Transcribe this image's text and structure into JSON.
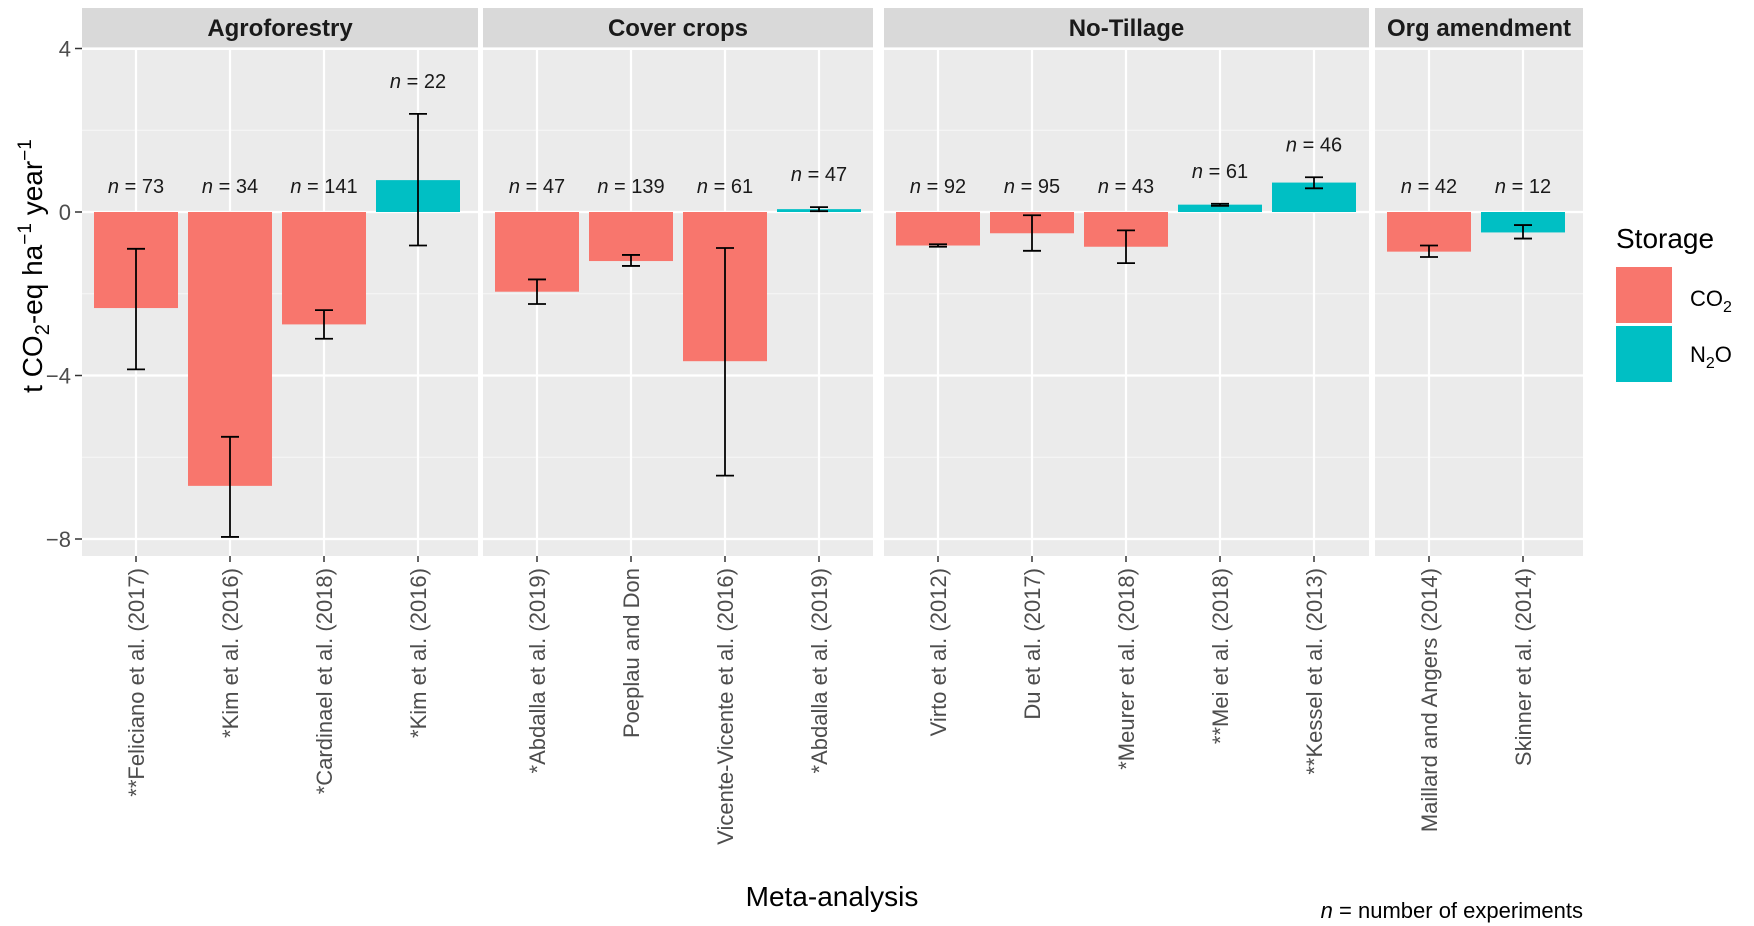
{
  "chart_data": {
    "type": "bar",
    "xlabel": "Meta-analysis",
    "ylabel": "t CO2-eq ha-1 year-1",
    "ylim": [
      -8.6,
      5.2
    ],
    "yticks": [
      4,
      0,
      -4,
      -8
    ],
    "grid": true,
    "legend": {
      "title": "Storage",
      "placement": "right",
      "entries": [
        {
          "key": "CO2",
          "label": "CO",
          "sub": "2",
          "color": "#F8766D"
        },
        {
          "key": "N2O",
          "label": "N",
          "sub": "2",
          "tail": "O",
          "color": "#00BFC4"
        }
      ]
    },
    "note": {
      "n": "n",
      "rest": " = number of experiments"
    },
    "n_prefix": "n",
    "panels": [
      {
        "title": "Agroforestry",
        "bars": [
          {
            "label": "**Feliciano et al. (2017)",
            "storage": "CO2",
            "value": -2.35,
            "err_low": -3.85,
            "err_high": -0.9,
            "n": "73"
          },
          {
            "label": "*Kim et al. (2016)",
            "storage": "CO2",
            "value": -6.7,
            "err_low": -7.95,
            "err_high": -5.5,
            "n": "34"
          },
          {
            "label": "*Cardinael et al. (2018)",
            "storage": "CO2",
            "value": -2.75,
            "err_low": -3.1,
            "err_high": -2.4,
            "n": "141"
          },
          {
            "label": "*Kim et al. (2016)",
            "storage": "N2O",
            "value": 0.78,
            "err_low": -0.82,
            "err_high": 2.4,
            "n": "22"
          }
        ]
      },
      {
        "title": "Cover  crops",
        "bars": [
          {
            "label": "*Abdalla et al. (2019)",
            "storage": "CO2",
            "value": -1.95,
            "err_low": -2.25,
            "err_high": -1.65,
            "n": "47"
          },
          {
            "label": "Poeplau and Don",
            "storage": "CO2",
            "value": -1.2,
            "err_low": -1.32,
            "err_high": -1.05,
            "n": "139"
          },
          {
            "label": "Vicente-Vicente et al. (2016)",
            "storage": "CO2",
            "value": -3.65,
            "err_low": -6.45,
            "err_high": -0.88,
            "n": "61"
          },
          {
            "label": "*Abdalla et al. (2019)",
            "storage": "N2O",
            "value": 0.07,
            "err_low": 0.02,
            "err_high": 0.12,
            "n": "47"
          }
        ]
      },
      {
        "title": "No-Tillage",
        "bars": [
          {
            "label": "Virto et al. (2012)",
            "storage": "CO2",
            "value": -0.82,
            "err_low": -0.85,
            "err_high": -0.79,
            "n": "92"
          },
          {
            "label": "Du et al. (2017)",
            "storage": "CO2",
            "value": -0.52,
            "err_low": -0.95,
            "err_high": -0.08,
            "n": "95"
          },
          {
            "label": "*Meurer et al. (2018)",
            "storage": "CO2",
            "value": -0.85,
            "err_low": -1.25,
            "err_high": -0.45,
            "n": "43"
          },
          {
            "label": "**Mei et al. (2018)",
            "storage": "N2O",
            "value": 0.18,
            "err_low": 0.15,
            "err_high": 0.2,
            "n": "61"
          },
          {
            "label": "**Kessel et al. (2013)",
            "storage": "N2O",
            "value": 0.72,
            "err_low": 0.58,
            "err_high": 0.85,
            "n": "46"
          }
        ]
      },
      {
        "title": "Org amendment",
        "bars": [
          {
            "label": "Maillard and Angers (2014)",
            "storage": "CO2",
            "value": -0.97,
            "err_low": -1.1,
            "err_high": -0.82,
            "n": "42"
          },
          {
            "label": "Skinner et al. (2014)",
            "storage": "N2O",
            "value": -0.5,
            "err_low": -0.65,
            "err_high": -0.32,
            "n": "12"
          }
        ]
      }
    ]
  }
}
